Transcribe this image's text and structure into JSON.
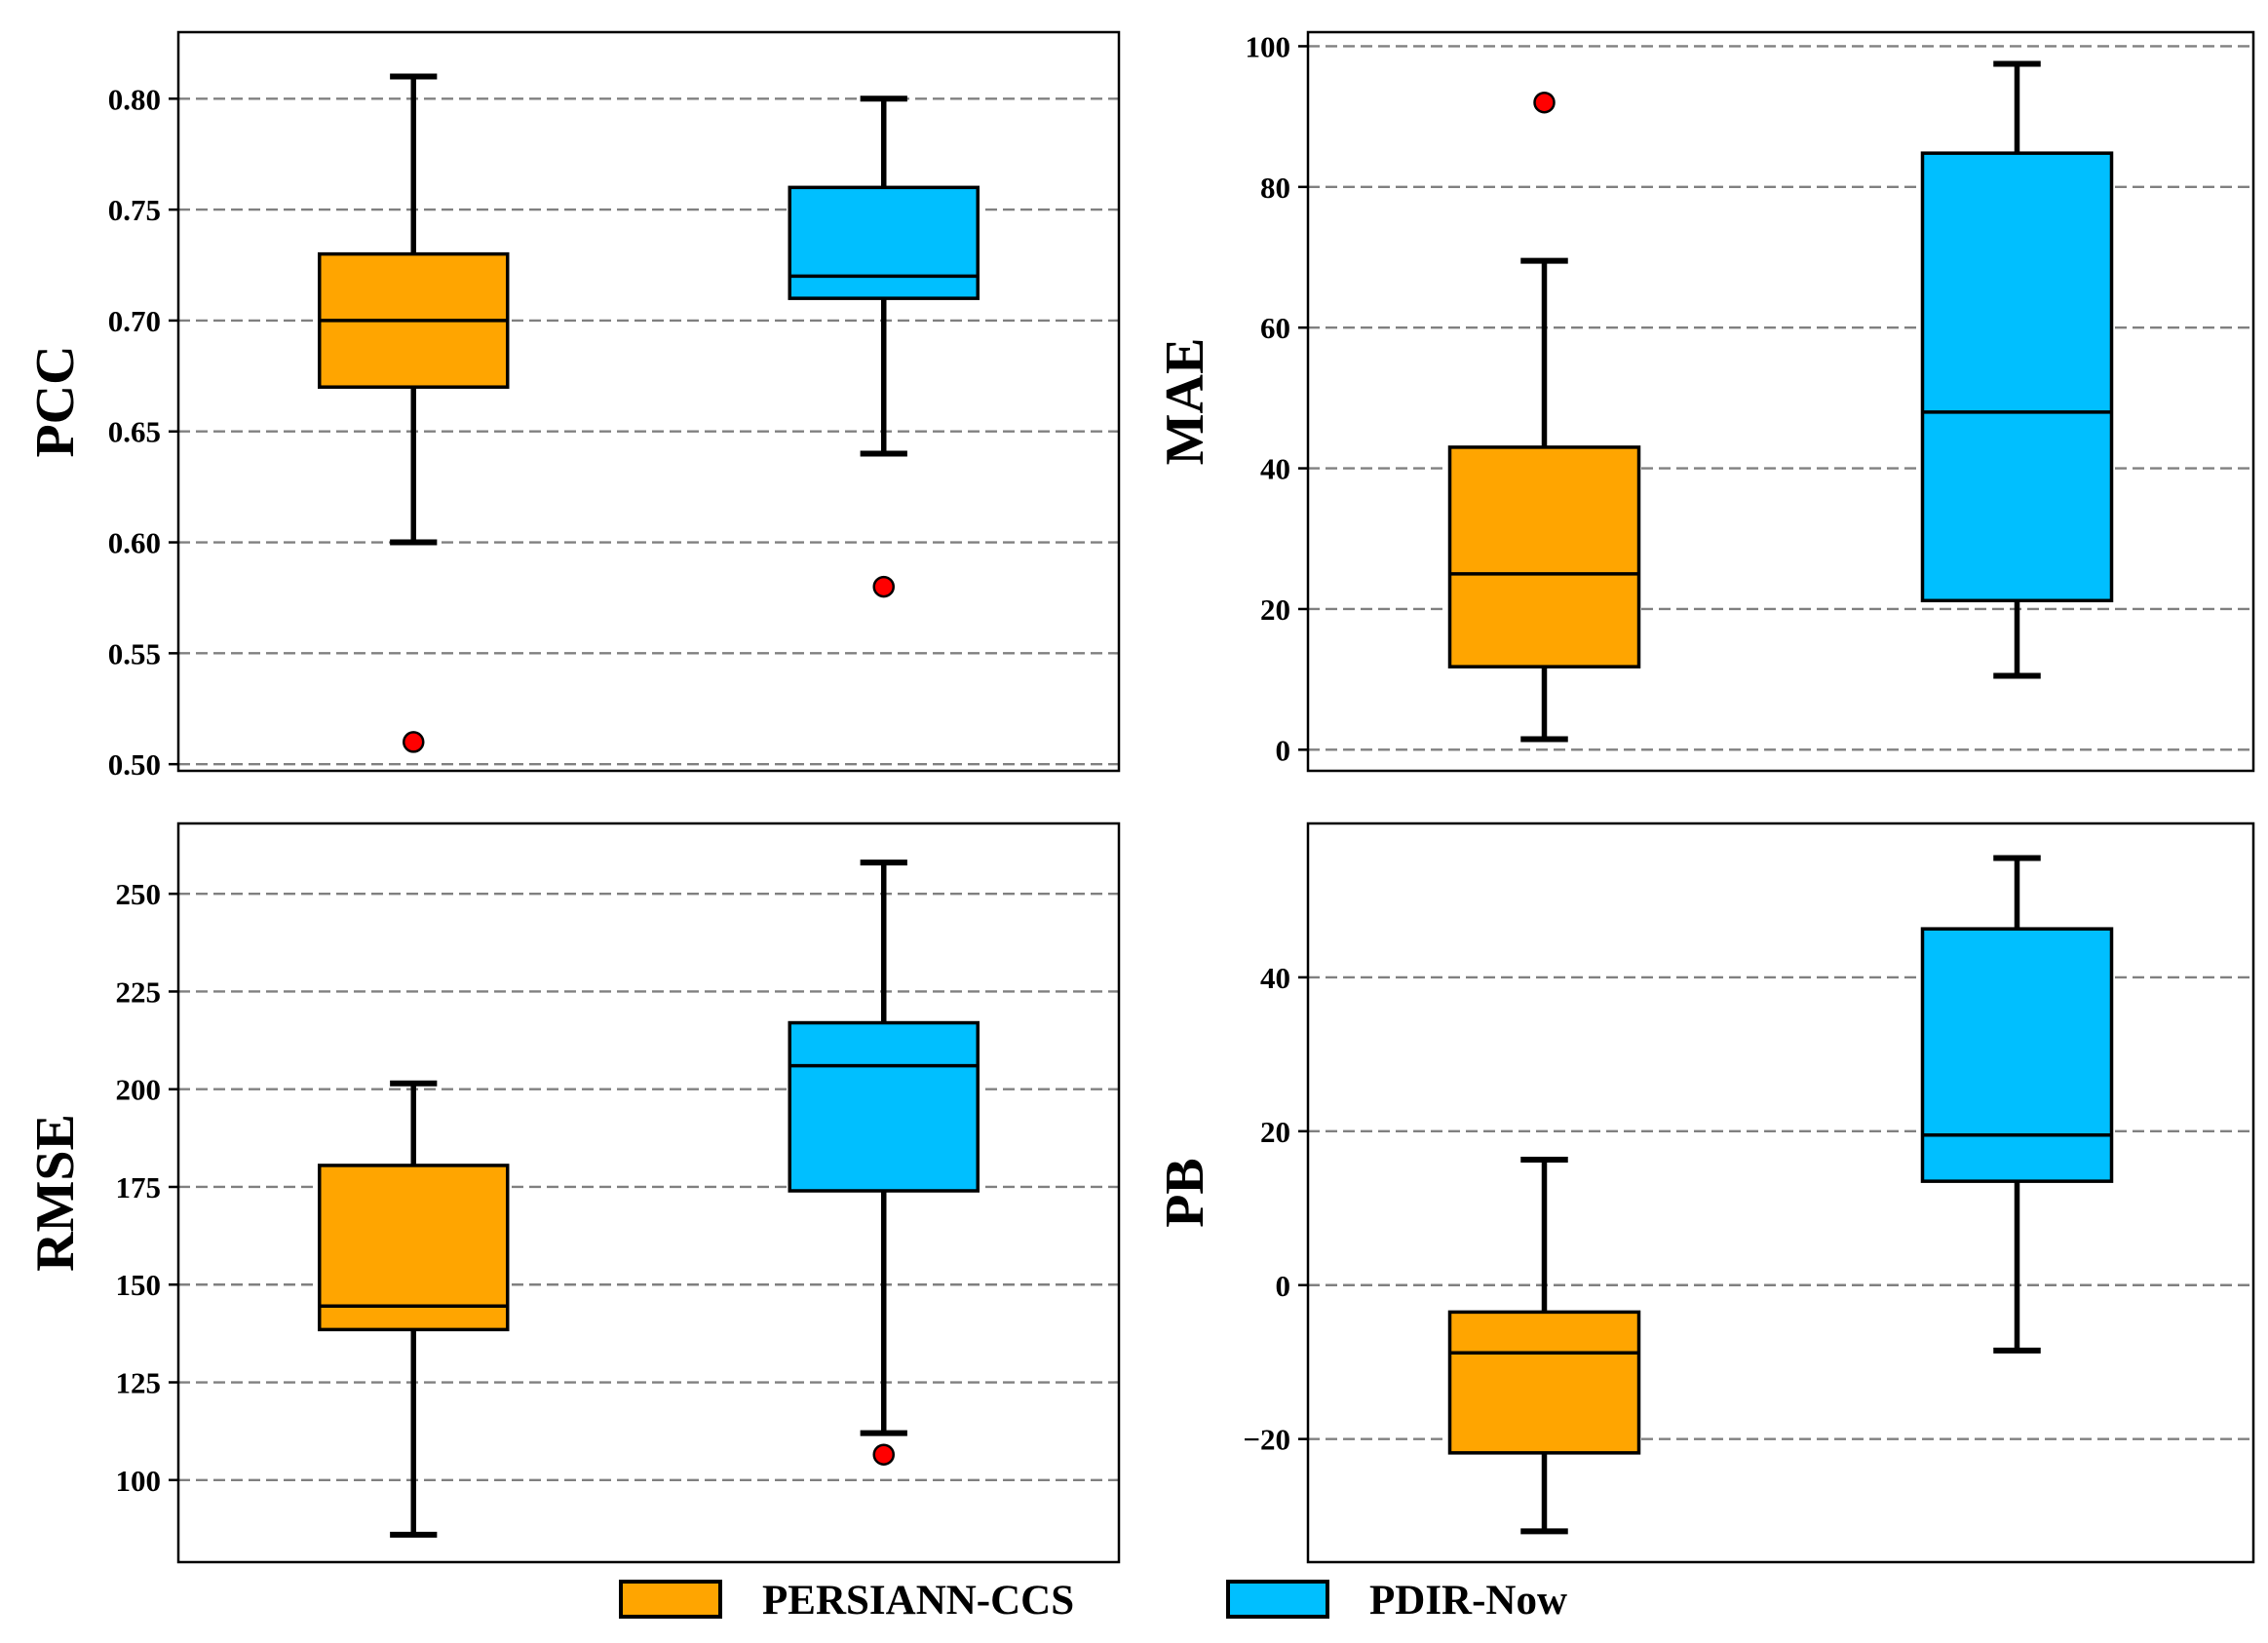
{
  "legend": {
    "items": [
      {
        "label": "PERSIANN-CCS",
        "color": "#FFA500"
      },
      {
        "label": "PDIR-Now",
        "color": "#00BFFF"
      }
    ]
  },
  "style": {
    "outlier_color": "#FF0000",
    "grid_color": "#808080",
    "edge_color": "#000000"
  },
  "chart_data": [
    {
      "type": "boxplot",
      "ylabel": "PCC",
      "ylim": [
        0.497,
        0.83
      ],
      "yticks": [
        0.5,
        0.55,
        0.6,
        0.65,
        0.7,
        0.75,
        0.8
      ],
      "ytick_labels": [
        "0.50",
        "0.55",
        "0.60",
        "0.65",
        "0.70",
        "0.75",
        "0.80"
      ],
      "grid": true,
      "series": [
        {
          "name": "PERSIANN-CCS",
          "whislo": 0.6,
          "q1": 0.67,
          "med": 0.7,
          "q3": 0.73,
          "whishi": 0.81,
          "fliers": [
            0.51
          ]
        },
        {
          "name": "PDIR-Now",
          "whislo": 0.64,
          "q1": 0.71,
          "med": 0.72,
          "q3": 0.76,
          "whishi": 0.8,
          "fliers": [
            0.58
          ]
        }
      ]
    },
    {
      "type": "boxplot",
      "ylabel": "MAE",
      "ylim": [
        -3,
        102
      ],
      "yticks": [
        0,
        20,
        40,
        60,
        80,
        100
      ],
      "ytick_labels": [
        "0",
        "20",
        "40",
        "60",
        "80",
        "100"
      ],
      "grid": true,
      "series": [
        {
          "name": "PERSIANN-CCS",
          "whislo": 1.5,
          "q1": 11.8,
          "med": 25.0,
          "q3": 43.0,
          "whishi": 69.5,
          "fliers": [
            92.0
          ]
        },
        {
          "name": "PDIR-Now",
          "whislo": 10.5,
          "q1": 21.2,
          "med": 48.0,
          "q3": 84.8,
          "whishi": 97.5,
          "fliers": []
        }
      ]
    },
    {
      "type": "boxplot",
      "ylabel": "RMSE",
      "ylim": [
        79,
        268
      ],
      "yticks": [
        100,
        125,
        150,
        175,
        200,
        225,
        250
      ],
      "ytick_labels": [
        "100",
        "125",
        "150",
        "175",
        "200",
        "225",
        "250"
      ],
      "grid": true,
      "series": [
        {
          "name": "PERSIANN-CCS",
          "whislo": 86,
          "q1": 138.5,
          "med": 144.5,
          "q3": 180.5,
          "whishi": 201.5,
          "fliers": []
        },
        {
          "name": "PDIR-Now",
          "whislo": 112,
          "q1": 174.0,
          "med": 206.0,
          "q3": 217.0,
          "whishi": 258,
          "fliers": [
            106.5
          ]
        }
      ]
    },
    {
      "type": "boxplot",
      "ylabel": "PB",
      "ylim": [
        -36,
        60
      ],
      "yticks": [
        -20,
        0,
        20,
        40
      ],
      "ytick_labels": [
        "−20",
        "0",
        "20",
        "40"
      ],
      "grid": true,
      "series": [
        {
          "name": "PERSIANN-CCS",
          "whislo": -32,
          "q1": -21.8,
          "med": -8.8,
          "q3": -3.5,
          "whishi": 16.3,
          "fliers": []
        },
        {
          "name": "PDIR-Now",
          "whislo": -8.5,
          "q1": 13.5,
          "med": 19.5,
          "q3": 46.3,
          "whishi": 55.5,
          "fliers": []
        }
      ]
    }
  ]
}
